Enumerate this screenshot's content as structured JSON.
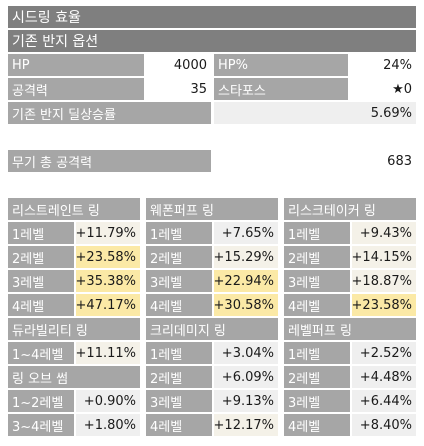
{
  "title": "시드링 효율",
  "base_ring": {
    "header": "기존 반지 옵션",
    "hp_label": "HP",
    "hp_value": "4000",
    "hp_pct_label": "HP%",
    "hp_pct_value": "24%",
    "atk_label": "공격력",
    "atk_value": "35",
    "starforce_label": "스타포스",
    "starforce_value": "★0",
    "dmg_rate_label": "기존 반지 딜상승률",
    "dmg_rate_value": "5.69%"
  },
  "weapon": {
    "label": "무기 총 공격력",
    "value": "683"
  },
  "rings": {
    "restraint": {
      "name": "리스트레인트 링",
      "rows": [
        {
          "level": "1레벨",
          "value": "+11.79%"
        },
        {
          "level": "2레벨",
          "value": "+23.58%"
        },
        {
          "level": "3레벨",
          "value": "+35.38%"
        },
        {
          "level": "4레벨",
          "value": "+47.17%"
        }
      ]
    },
    "weapon_puff": {
      "name": "웨폰퍼프 링",
      "rows": [
        {
          "level": "1레벨",
          "value": "+7.65%"
        },
        {
          "level": "2레벨",
          "value": "+15.29%"
        },
        {
          "level": "3레벨",
          "value": "+22.94%"
        },
        {
          "level": "4레벨",
          "value": "+30.58%"
        }
      ]
    },
    "risk_taker": {
      "name": "리스크테이커 링",
      "rows": [
        {
          "level": "1레벨",
          "value": "+9.43%"
        },
        {
          "level": "2레벨",
          "value": "+14.15%"
        },
        {
          "level": "3레벨",
          "value": "+18.87%"
        },
        {
          "level": "4레벨",
          "value": "+23.58%"
        }
      ]
    },
    "durability": {
      "name": "듀라빌리티 링",
      "rows": [
        {
          "level": "1~4레벨",
          "value": "+11.11%"
        }
      ]
    },
    "ring_of_sum": {
      "name": "링 오브 썸",
      "rows": [
        {
          "level": "1~2레벨",
          "value": "+0.90%"
        },
        {
          "level": "3~4레벨",
          "value": "+1.80%"
        }
      ]
    },
    "crit_damage": {
      "name": "크리데미지 링",
      "rows": [
        {
          "level": "1레벨",
          "value": "+3.04%"
        },
        {
          "level": "2레벨",
          "value": "+6.09%"
        },
        {
          "level": "3레벨",
          "value": "+9.13%"
        },
        {
          "level": "4레벨",
          "value": "+12.17%"
        }
      ]
    },
    "level_puff": {
      "name": "레벨퍼프 링",
      "rows": [
        {
          "level": "1레벨",
          "value": "+2.52%"
        },
        {
          "level": "2레벨",
          "value": "+4.48%"
        },
        {
          "level": "3레벨",
          "value": "+6.44%"
        },
        {
          "level": "4레벨",
          "value": "+8.40%"
        }
      ]
    }
  },
  "colors": {
    "header": "#7f7f7f",
    "label": "#a6a6a6",
    "highlight_yellow": "#fbe9a6",
    "light_cell": "#f4f1e8",
    "grey_cell": "#efefef"
  }
}
